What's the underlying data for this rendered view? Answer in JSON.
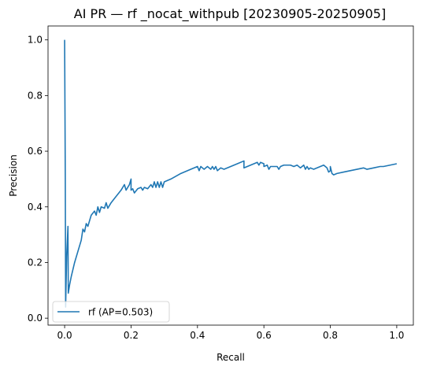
{
  "chart_data": {
    "type": "line",
    "title": "AI PR — rf _nocat_withpub [20230905-20250905]",
    "xlabel": "Recall",
    "ylabel": "Precision",
    "xlim": [
      -0.05,
      1.05
    ],
    "ylim": [
      -0.025,
      1.05
    ],
    "xticks": [
      {
        "value": 0.0,
        "label": "0.0"
      },
      {
        "value": 0.2,
        "label": "0.2"
      },
      {
        "value": 0.4,
        "label": "0.4"
      },
      {
        "value": 0.6,
        "label": "0.6"
      },
      {
        "value": 0.8,
        "label": "0.8"
      },
      {
        "value": 1.0,
        "label": "1.0"
      }
    ],
    "yticks": [
      {
        "value": 0.0,
        "label": "0.0"
      },
      {
        "value": 0.2,
        "label": "0.2"
      },
      {
        "value": 0.4,
        "label": "0.4"
      },
      {
        "value": 0.6,
        "label": "0.6"
      },
      {
        "value": 0.8,
        "label": "0.8"
      },
      {
        "value": 1.0,
        "label": "1.0"
      }
    ],
    "grid": false,
    "legend_position": "lower-left",
    "series": [
      {
        "name": "rf (AP=0.503)",
        "color": "#1f77b4",
        "points": [
          [
            0.0,
            1.0
          ],
          [
            0.002,
            0.5
          ],
          [
            0.003,
            0.04
          ],
          [
            0.006,
            0.22
          ],
          [
            0.01,
            0.33
          ],
          [
            0.011,
            0.09
          ],
          [
            0.015,
            0.12
          ],
          [
            0.02,
            0.15
          ],
          [
            0.03,
            0.2
          ],
          [
            0.04,
            0.24
          ],
          [
            0.05,
            0.28
          ],
          [
            0.055,
            0.32
          ],
          [
            0.06,
            0.31
          ],
          [
            0.065,
            0.34
          ],
          [
            0.07,
            0.33
          ],
          [
            0.08,
            0.37
          ],
          [
            0.09,
            0.385
          ],
          [
            0.095,
            0.37
          ],
          [
            0.1,
            0.4
          ],
          [
            0.105,
            0.38
          ],
          [
            0.11,
            0.4
          ],
          [
            0.12,
            0.395
          ],
          [
            0.125,
            0.415
          ],
          [
            0.13,
            0.395
          ],
          [
            0.14,
            0.415
          ],
          [
            0.15,
            0.43
          ],
          [
            0.17,
            0.46
          ],
          [
            0.18,
            0.48
          ],
          [
            0.185,
            0.46
          ],
          [
            0.195,
            0.48
          ],
          [
            0.2,
            0.5
          ],
          [
            0.2,
            0.46
          ],
          [
            0.205,
            0.465
          ],
          [
            0.21,
            0.45
          ],
          [
            0.22,
            0.465
          ],
          [
            0.23,
            0.47
          ],
          [
            0.235,
            0.46
          ],
          [
            0.24,
            0.47
          ],
          [
            0.25,
            0.465
          ],
          [
            0.26,
            0.48
          ],
          [
            0.265,
            0.47
          ],
          [
            0.27,
            0.49
          ],
          [
            0.275,
            0.47
          ],
          [
            0.28,
            0.49
          ],
          [
            0.285,
            0.47
          ],
          [
            0.29,
            0.49
          ],
          [
            0.295,
            0.47
          ],
          [
            0.3,
            0.49
          ],
          [
            0.32,
            0.5
          ],
          [
            0.35,
            0.52
          ],
          [
            0.38,
            0.535
          ],
          [
            0.4,
            0.545
          ],
          [
            0.405,
            0.53
          ],
          [
            0.41,
            0.545
          ],
          [
            0.42,
            0.535
          ],
          [
            0.43,
            0.545
          ],
          [
            0.44,
            0.535
          ],
          [
            0.445,
            0.545
          ],
          [
            0.45,
            0.535
          ],
          [
            0.455,
            0.545
          ],
          [
            0.46,
            0.53
          ],
          [
            0.47,
            0.54
          ],
          [
            0.48,
            0.535
          ],
          [
            0.49,
            0.54
          ],
          [
            0.5,
            0.545
          ],
          [
            0.52,
            0.555
          ],
          [
            0.54,
            0.565
          ],
          [
            0.54,
            0.54
          ],
          [
            0.56,
            0.55
          ],
          [
            0.58,
            0.56
          ],
          [
            0.585,
            0.55
          ],
          [
            0.59,
            0.56
          ],
          [
            0.6,
            0.555
          ],
          [
            0.6,
            0.545
          ],
          [
            0.61,
            0.55
          ],
          [
            0.615,
            0.535
          ],
          [
            0.62,
            0.545
          ],
          [
            0.64,
            0.545
          ],
          [
            0.645,
            0.535
          ],
          [
            0.65,
            0.545
          ],
          [
            0.66,
            0.55
          ],
          [
            0.68,
            0.55
          ],
          [
            0.69,
            0.545
          ],
          [
            0.7,
            0.55
          ],
          [
            0.71,
            0.54
          ],
          [
            0.72,
            0.55
          ],
          [
            0.725,
            0.535
          ],
          [
            0.73,
            0.545
          ],
          [
            0.735,
            0.535
          ],
          [
            0.74,
            0.54
          ],
          [
            0.75,
            0.535
          ],
          [
            0.77,
            0.545
          ],
          [
            0.78,
            0.55
          ],
          [
            0.79,
            0.54
          ],
          [
            0.795,
            0.525
          ],
          [
            0.8,
            0.53
          ],
          [
            0.8,
            0.545
          ],
          [
            0.805,
            0.52
          ],
          [
            0.81,
            0.515
          ],
          [
            0.82,
            0.52
          ],
          [
            0.84,
            0.525
          ],
          [
            0.86,
            0.53
          ],
          [
            0.88,
            0.535
          ],
          [
            0.9,
            0.54
          ],
          [
            0.91,
            0.535
          ],
          [
            0.93,
            0.54
          ],
          [
            0.95,
            0.545
          ],
          [
            0.96,
            0.545
          ],
          [
            0.98,
            0.55
          ],
          [
            1.0,
            0.555
          ]
        ]
      }
    ]
  }
}
